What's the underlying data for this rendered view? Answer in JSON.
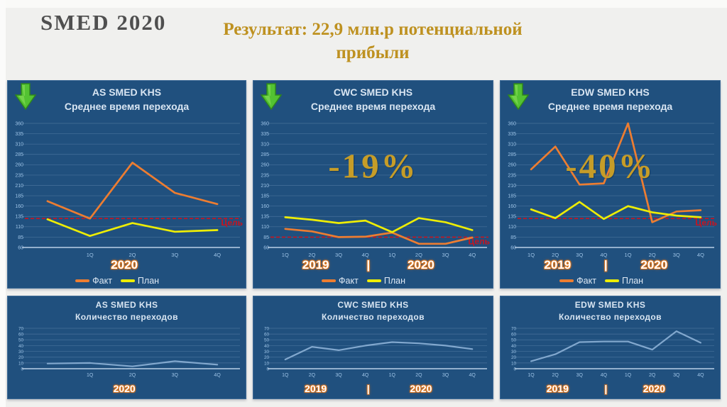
{
  "header": {
    "logo": "SMED 2020",
    "title_line1": "Результат: 22,9 млн.р потенциальной",
    "title_line2": "прибыли"
  },
  "legend": {
    "fact": "Факт",
    "plan": "План"
  },
  "colors": {
    "background": "#F0F0EE",
    "panel": "#20507E",
    "fact": "#ED7D31",
    "plan": "#EDED05",
    "count_line": "#82A8CE",
    "goal": "#C81420",
    "gold": "#BE9120",
    "title_text": "#D8E5F2",
    "tick_text": "#9DC3E6",
    "arrow_green": "#53C232"
  },
  "chart_data": [
    {
      "id": "as-changeover-time",
      "type": "line",
      "row": "top",
      "title_line1": "AS SMED KHS",
      "title_line2": "Среднее время перехода",
      "ylim": [
        60,
        360
      ],
      "ytick_step": 25,
      "grid": true,
      "x_labels": [
        "",
        "1Q",
        "2Q",
        "3Q",
        "4Q"
      ],
      "years": [
        {
          "label": "2020",
          "x": 49
        }
      ],
      "goal": 130,
      "goal_label": "Цель",
      "series": [
        {
          "name": "Факт",
          "color": "#ED7D31",
          "values": [
            172,
            130,
            265,
            192,
            165
          ]
        },
        {
          "name": "План",
          "color": "#EDED05",
          "values": [
            128,
            88,
            119,
            98,
            102
          ]
        }
      ]
    },
    {
      "id": "cwc-changeover-time",
      "type": "line",
      "row": "top",
      "title_line1": "CWC SMED KHS",
      "title_line2": "Среднее время перехода",
      "badge": "-19%",
      "ylim": [
        60,
        360
      ],
      "ytick_step": 25,
      "grid": true,
      "x_labels": [
        "1Q",
        "2Q",
        "3Q",
        "4Q",
        "1Q",
        "2Q",
        "3Q",
        "4Q"
      ],
      "years": [
        {
          "label": "2019",
          "x": 26
        },
        {
          "label": "|",
          "x": 48
        },
        {
          "label": "2020",
          "x": 70
        }
      ],
      "goal": 85,
      "goal_label": "Цель",
      "series": [
        {
          "name": "Факт",
          "color": "#ED7D31",
          "values": [
            105,
            99,
            85,
            86,
            96,
            69,
            69,
            84
          ]
        },
        {
          "name": "План",
          "color": "#EDED05",
          "values": [
            133,
            127,
            119,
            125,
            97,
            131,
            121,
            102
          ]
        }
      ]
    },
    {
      "id": "edw-changeover-time",
      "type": "line",
      "row": "top",
      "title_line1": "EDW SMED KHS",
      "title_line2": "Среднее время перехода",
      "badge": "-40%",
      "ylim": [
        60,
        360
      ],
      "ytick_step": 25,
      "grid": true,
      "x_labels": [
        "1Q",
        "2Q",
        "3Q",
        "4Q",
        "1Q",
        "2Q",
        "3Q",
        "4Q"
      ],
      "years": [
        {
          "label": "2019",
          "x": 26
        },
        {
          "label": "|",
          "x": 48
        },
        {
          "label": "2020",
          "x": 70
        }
      ],
      "goal": 130,
      "goal_label": "Цель",
      "series": [
        {
          "name": "Факт",
          "color": "#ED7D31",
          "values": [
            249,
            304,
            212,
            215,
            360,
            121,
            147,
            150
          ]
        },
        {
          "name": "План",
          "color": "#EDED05",
          "values": [
            152,
            131,
            170,
            129,
            160,
            145,
            137,
            133
          ]
        }
      ]
    },
    {
      "id": "as-changeover-count",
      "type": "line",
      "row": "bottom",
      "title_line1": "AS SMED KHS",
      "title_line2": "Количество переходов",
      "ylim": [
        0,
        70
      ],
      "ytick_step": 10,
      "grid": true,
      "x_labels": [
        "",
        "1Q",
        "2Q",
        "3Q",
        "4Q"
      ],
      "years": [
        {
          "label": "2020",
          "x": 49
        }
      ],
      "series": [
        {
          "name": "Количество переходов",
          "color": "#82A8CE",
          "values": [
            9,
            10,
            4,
            13,
            7
          ]
        }
      ]
    },
    {
      "id": "cwc-changeover-count",
      "type": "line",
      "row": "bottom",
      "title_line1": "CWC SMED KHS",
      "title_line2": "Количество переходов",
      "ylim": [
        0,
        70
      ],
      "ytick_step": 10,
      "grid": true,
      "x_labels": [
        "1Q",
        "2Q",
        "3Q",
        "4Q",
        "1Q",
        "2Q",
        "3Q",
        "4Q"
      ],
      "years": [
        {
          "label": "2019",
          "x": 26
        },
        {
          "label": "|",
          "x": 48
        },
        {
          "label": "2020",
          "x": 70
        }
      ],
      "series": [
        {
          "name": "Количество переходов",
          "color": "#82A8CE",
          "values": [
            16,
            38,
            32,
            40,
            46,
            44,
            40,
            34
          ]
        }
      ]
    },
    {
      "id": "edw-changeover-count",
      "type": "line",
      "row": "bottom",
      "title_line1": "EDW SMED KHS",
      "title_line2": "Количество переходов",
      "ylim": [
        0,
        70
      ],
      "ytick_step": 10,
      "grid": true,
      "x_labels": [
        "1Q",
        "2Q",
        "3Q",
        "4Q",
        "1Q",
        "2Q",
        "3Q",
        "4Q"
      ],
      "years": [
        {
          "label": "2019",
          "x": 26
        },
        {
          "label": "|",
          "x": 48
        },
        {
          "label": "2020",
          "x": 70
        }
      ],
      "series": [
        {
          "name": "Количество переходов",
          "color": "#82A8CE",
          "values": [
            13,
            25,
            46,
            47,
            47,
            33,
            65,
            45
          ]
        }
      ]
    }
  ]
}
